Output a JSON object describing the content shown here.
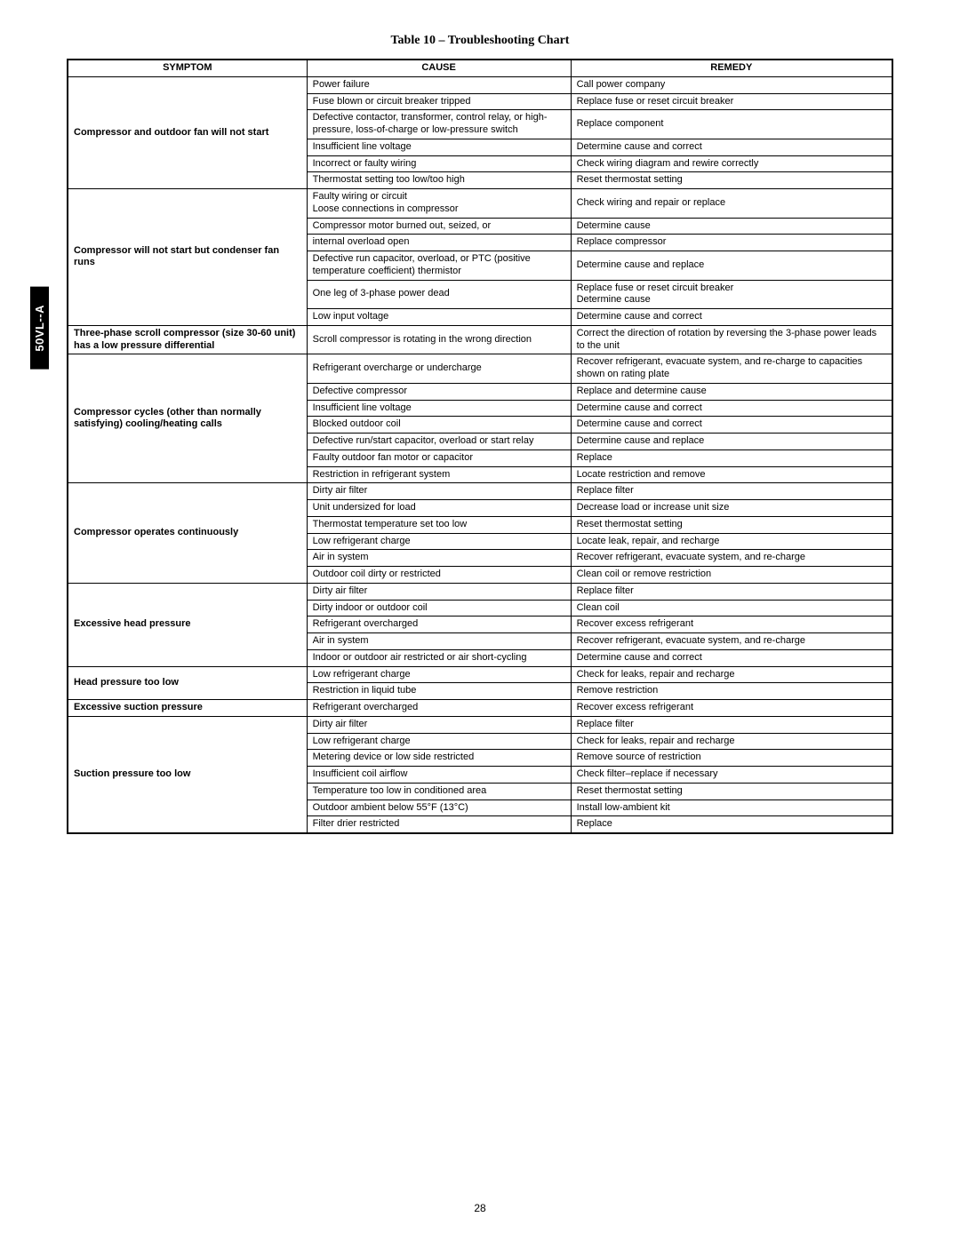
{
  "sideTab": "50VL--A",
  "title": "Table 10 – Troubleshooting Chart",
  "pageNumber": "28",
  "headers": {
    "symptom": "SYMPTOM",
    "cause": "CAUSE",
    "remedy": "REMEDY"
  },
  "groups": [
    {
      "symptom": "Compressor and outdoor fan will not start",
      "rows": [
        {
          "cause": "Power failure",
          "remedy": "Call power company"
        },
        {
          "cause": "Fuse blown or circuit breaker tripped",
          "remedy": "Replace fuse or reset circuit breaker"
        },
        {
          "cause": "Defective contactor, transformer, control relay, or high-pressure, loss-of-charge or low-pressure switch",
          "remedy": "Replace component"
        },
        {
          "cause": "Insufficient line voltage",
          "remedy": "Determine cause and correct"
        },
        {
          "cause": "Incorrect or faulty wiring",
          "remedy": "Check wiring diagram and rewire correctly"
        },
        {
          "cause": "Thermostat setting too low/too high",
          "remedy": "Reset thermostat setting"
        }
      ]
    },
    {
      "symptom": "Compressor will not start but condenser fan runs",
      "rows": [
        {
          "cause": "Faulty wiring or circuit\nLoose connections in compressor",
          "remedy": "Check wiring and repair or replace"
        },
        {
          "cause": "Compressor motor burned out, seized, or",
          "remedy": "Determine cause"
        },
        {
          "cause": "internal overload open",
          "remedy": "Replace compressor"
        },
        {
          "cause": "Defective run capacitor, overload, or PTC (positive temperature coefficient) thermistor",
          "remedy": "Determine cause and replace"
        },
        {
          "cause": "One leg of 3-phase power dead",
          "remedy": "Replace fuse or reset circuit breaker\nDetermine cause"
        },
        {
          "cause": "Low input voltage",
          "remedy": "Determine cause and correct"
        }
      ]
    },
    {
      "symptom": "Three-phase scroll compressor (size 30-60 unit) has a low pressure differential",
      "rows": [
        {
          "cause": "Scroll compressor is rotating in the wrong direction",
          "remedy": "Correct the direction of rotation by reversing the 3-phase power leads to the unit"
        }
      ]
    },
    {
      "symptom": "Compressor cycles (other than normally satisfying)  cooling/heating calls",
      "rows": [
        {
          "cause": "Refrigerant overcharge or undercharge",
          "remedy": "Recover refrigerant, evacuate system, and re-charge to capacities shown on rating plate"
        },
        {
          "cause": "Defective compressor",
          "remedy": "Replace and determine cause"
        },
        {
          "cause": "Insufficient line voltage",
          "remedy": "Determine cause and correct"
        },
        {
          "cause": "Blocked outdoor coil",
          "remedy": "Determine cause and correct"
        },
        {
          "cause": "Defective run/start capacitor, overload or start relay",
          "remedy": "Determine cause and replace"
        },
        {
          "cause": "Faulty outdoor fan motor or capacitor",
          "remedy": "Replace"
        },
        {
          "cause": "Restriction in refrigerant system",
          "remedy": "Locate restriction and remove"
        }
      ]
    },
    {
      "symptom": "Compressor operates continuously",
      "rows": [
        {
          "cause": "Dirty air filter",
          "remedy": "Replace filter"
        },
        {
          "cause": "Unit undersized for load",
          "remedy": "Decrease load or increase unit size"
        },
        {
          "cause": "Thermostat temperature set too low",
          "remedy": "Reset thermostat setting"
        },
        {
          "cause": "Low refrigerant charge",
          "remedy": "Locate leak, repair, and recharge"
        },
        {
          "cause": "Air in system",
          "remedy": "Recover refrigerant, evacuate system, and re-charge"
        },
        {
          "cause": "Outdoor coil dirty or restricted",
          "remedy": "Clean coil or remove restriction"
        }
      ]
    },
    {
      "symptom": "Excessive head pressure",
      "rows": [
        {
          "cause": "Dirty air filter",
          "remedy": "Replace filter"
        },
        {
          "cause": "Dirty indoor or outdoor coil",
          "remedy": "Clean coil"
        },
        {
          "cause": "Refrigerant overcharged",
          "remedy": "Recover excess refrigerant"
        },
        {
          "cause": "Air in system",
          "remedy": "Recover refrigerant, evacuate system, and re-charge"
        },
        {
          "cause": "Indoor or outdoor air restricted or air short-cycling",
          "remedy": "Determine cause and correct"
        }
      ]
    },
    {
      "symptom": "Head pressure too low",
      "rows": [
        {
          "cause": "Low refrigerant charge",
          "remedy": "Check for leaks, repair and recharge"
        },
        {
          "cause": "Restriction in liquid tube",
          "remedy": "Remove restriction"
        }
      ]
    },
    {
      "symptom": "Excessive suction pressure",
      "rows": [
        {
          "cause": "Refrigerant overcharged",
          "remedy": "Recover excess refrigerant"
        }
      ]
    },
    {
      "symptom": "Suction pressure too low",
      "rows": [
        {
          "cause": "Dirty air filter",
          "remedy": "Replace filter"
        },
        {
          "cause": "Low refrigerant charge",
          "remedy": "Check for leaks, repair and recharge"
        },
        {
          "cause": "Metering device or low side restricted",
          "remedy": "Remove source of restriction"
        },
        {
          "cause": "Insufficient coil airflow",
          "remedy": "Check filter–replace if necessary"
        },
        {
          "cause": "Temperature too low in conditioned area",
          "remedy": "Reset thermostat setting"
        },
        {
          "cause": "Outdoor ambient below 55°F (13°C)",
          "remedy": "Install low-ambient kit"
        },
        {
          "cause": "Filter drier restricted",
          "remedy": "Replace"
        }
      ]
    }
  ]
}
